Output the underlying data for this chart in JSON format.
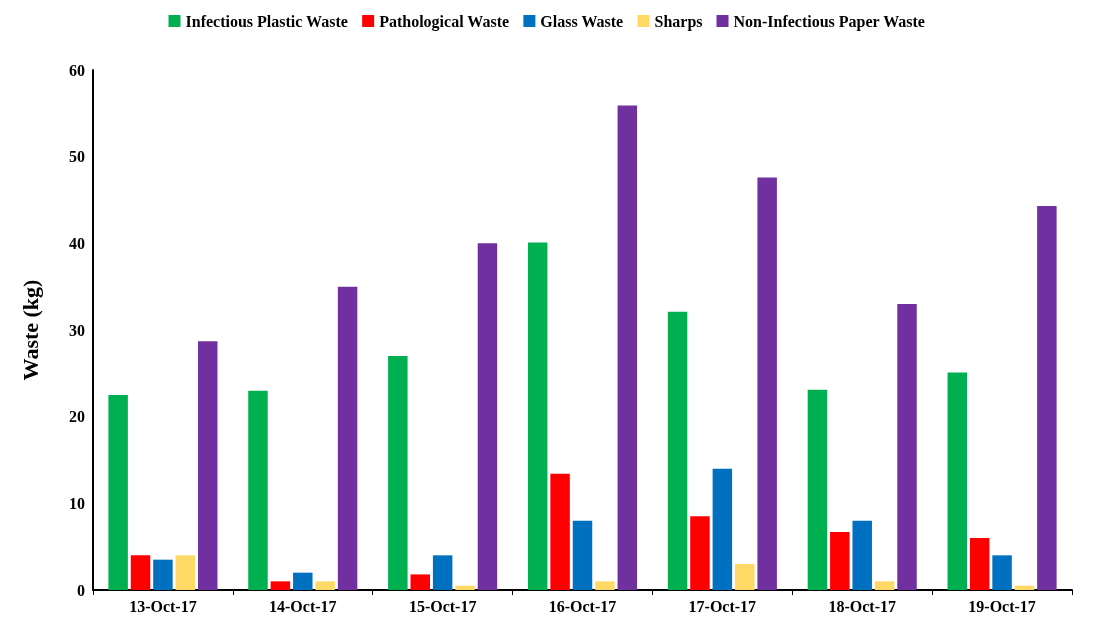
{
  "chart_data": {
    "type": "bar",
    "ylabel": "Waste (kg)",
    "categories": [
      "13-Oct-17",
      "14-Oct-17",
      "15-Oct-17",
      "16-Oct-17",
      "17-Oct-17",
      "18-Oct-17",
      "19-Oct-17"
    ],
    "series": [
      {
        "name": "Infectious Plastic Waste",
        "color": "#00b050",
        "values": [
          22.5,
          23.0,
          27.0,
          40.1,
          32.1,
          23.1,
          25.1
        ]
      },
      {
        "name": "Pathological Waste",
        "color": "#ff0000",
        "values": [
          4.0,
          1.0,
          1.8,
          13.4,
          8.5,
          6.7,
          6.0
        ]
      },
      {
        "name": "Glass Waste",
        "color": "#0070c0",
        "values": [
          3.5,
          2.0,
          4.0,
          8.0,
          14.0,
          8.0,
          4.0
        ]
      },
      {
        "name": "Sharps",
        "color": "#ffd966",
        "values": [
          4.0,
          1.0,
          0.5,
          1.0,
          3.0,
          1.0,
          0.5
        ]
      },
      {
        "name": "Non-Infectious Paper Waste",
        "color": "#7030a0",
        "values": [
          28.7,
          35.0,
          40.0,
          55.9,
          47.6,
          33.0,
          44.3
        ]
      }
    ],
    "ylim": [
      0,
      60
    ],
    "yticks": [
      0,
      10,
      20,
      30,
      40,
      50,
      60
    ],
    "grid": false,
    "legend": "top"
  }
}
